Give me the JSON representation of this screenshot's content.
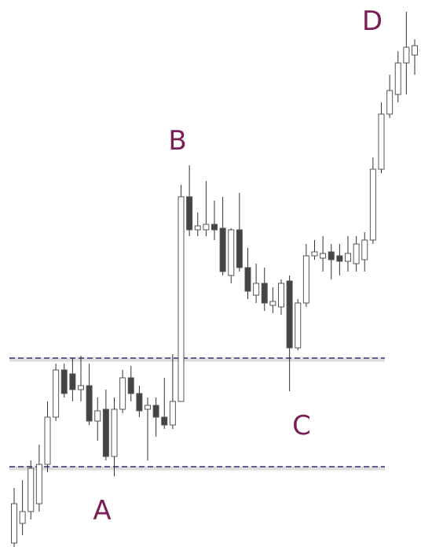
{
  "chart_data": {
    "type": "candlestick",
    "ylim": [
      0,
      695
    ],
    "open": [
      5,
      30,
      45,
      55,
      105,
      165,
      225,
      220,
      200,
      205,
      160,
      175,
      115,
      175,
      215,
      195,
      175,
      180,
      165,
      155,
      185,
      445,
      403,
      403,
      410,
      405,
      345,
      403,
      355,
      320,
      335,
      307,
      305,
      338,
      253,
      310,
      370,
      367,
      375,
      370,
      363,
      360,
      365,
      390,
      480,
      550,
      575,
      615,
      625
    ],
    "high": [
      75,
      85,
      110,
      130,
      185,
      233,
      233,
      240,
      243,
      233,
      190,
      200,
      190,
      225,
      230,
      205,
      190,
      190,
      215,
      245,
      460,
      485,
      425,
      465,
      440,
      445,
      405,
      450,
      380,
      360,
      355,
      330,
      340,
      345,
      315,
      385,
      390,
      395,
      385,
      385,
      395,
      395,
      400,
      495,
      565,
      600,
      630,
      680,
      645
    ],
    "low": [
      0,
      15,
      35,
      45,
      95,
      160,
      190,
      185,
      185,
      155,
      135,
      110,
      90,
      170,
      185,
      165,
      110,
      140,
      150,
      150,
      185,
      395,
      395,
      395,
      390,
      345,
      335,
      350,
      315,
      310,
      300,
      297,
      295,
      198,
      250,
      305,
      365,
      350,
      340,
      345,
      350,
      350,
      350,
      385,
      475,
      545,
      565,
      575,
      600
    ],
    "close": [
      55,
      45,
      100,
      105,
      165,
      225,
      195,
      200,
      205,
      160,
      173,
      115,
      175,
      215,
      195,
      173,
      180,
      165,
      155,
      185,
      445,
      403,
      408,
      410,
      403,
      350,
      403,
      355,
      325,
      335,
      310,
      312,
      335,
      253,
      310,
      370,
      375,
      373,
      365,
      363,
      373,
      385,
      390,
      480,
      550,
      580,
      615,
      635,
      637
    ],
    "up_color": "#ffffff",
    "down_color": "#444444",
    "levels": [
      240,
      102
    ],
    "level_color": "#6b5a8e",
    "annotations": [
      "A",
      "B",
      "C",
      "D"
    ]
  }
}
